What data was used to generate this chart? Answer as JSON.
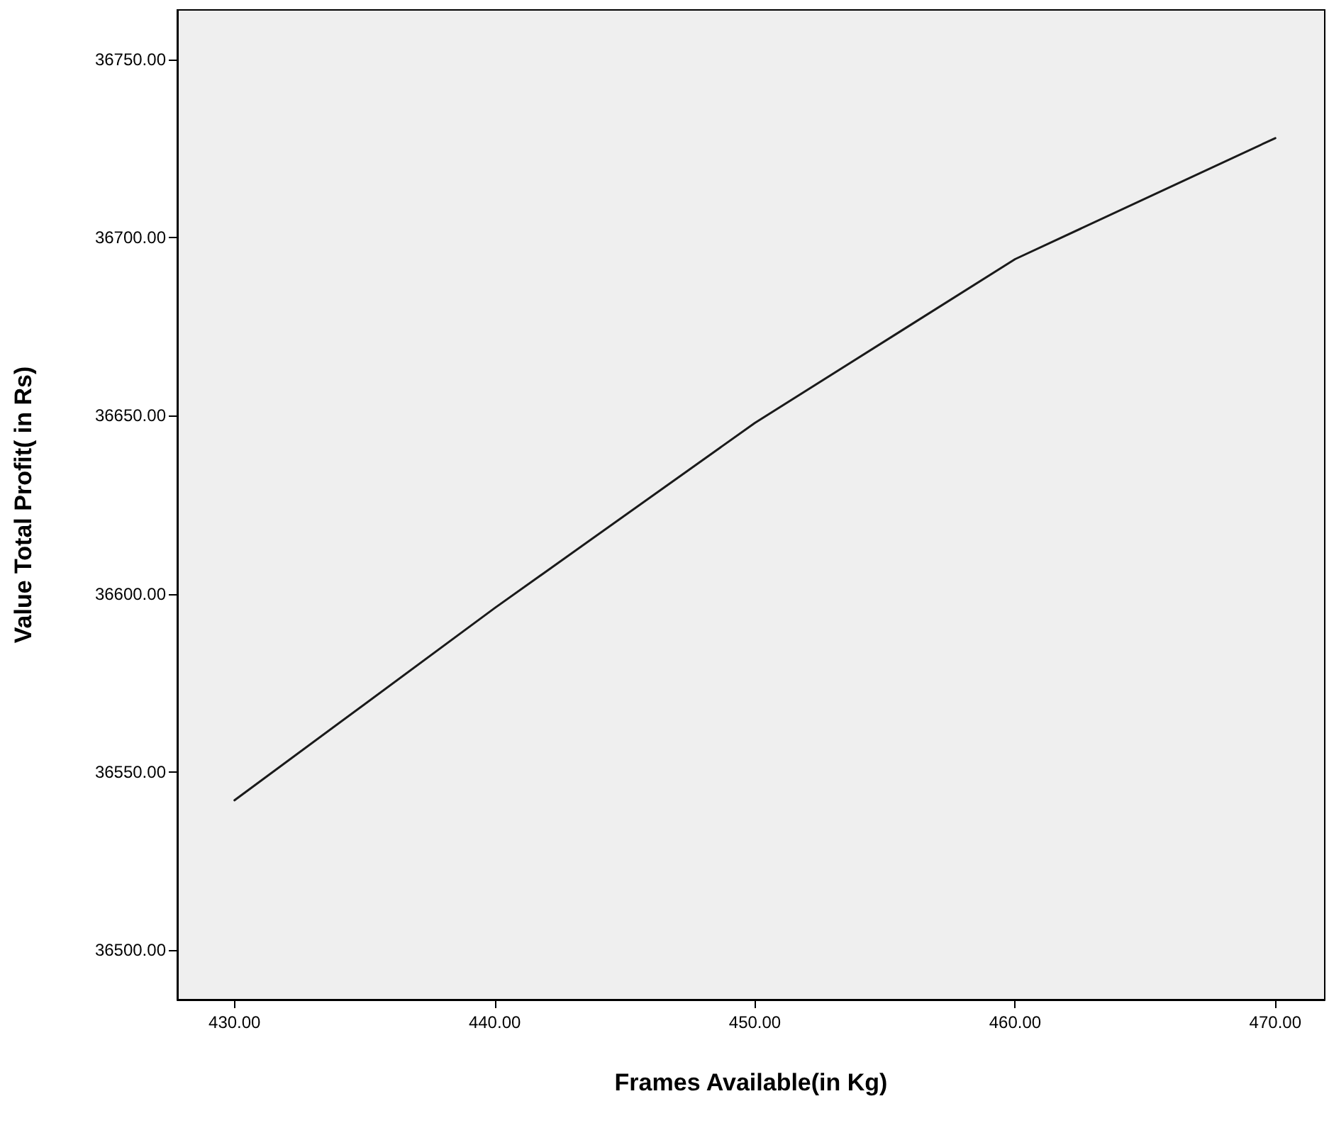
{
  "chart_data": {
    "type": "line",
    "xlabel": "Frames Available(in Kg)",
    "ylabel": "Value Total Profit( in Rs)",
    "x": [
      430,
      440,
      450,
      460,
      470
    ],
    "series": [
      {
        "color": "#1a1a1a",
        "values": [
          36542,
          36596,
          36648,
          36694,
          36728
        ]
      }
    ],
    "xlim": [
      427.8,
      471.9
    ],
    "xticks": [
      {
        "value": 430,
        "label": "430.00"
      },
      {
        "value": 440,
        "label": "440.00"
      },
      {
        "value": 450,
        "label": "450.00"
      },
      {
        "value": 460,
        "label": "460.00"
      },
      {
        "value": 470,
        "label": "470.00"
      }
    ],
    "ylim": [
      36486,
      36764
    ],
    "yticks": [
      {
        "value": 36500,
        "label": "36500.00"
      },
      {
        "value": 36550,
        "label": "36550.00"
      },
      {
        "value": 36600,
        "label": "36600.00"
      },
      {
        "value": 36650,
        "label": "36650.00"
      },
      {
        "value": 36700,
        "label": "36700.00"
      },
      {
        "value": 36750,
        "label": "36750.00"
      }
    ],
    "grid": false,
    "marker": "none",
    "line_style": "solid"
  }
}
